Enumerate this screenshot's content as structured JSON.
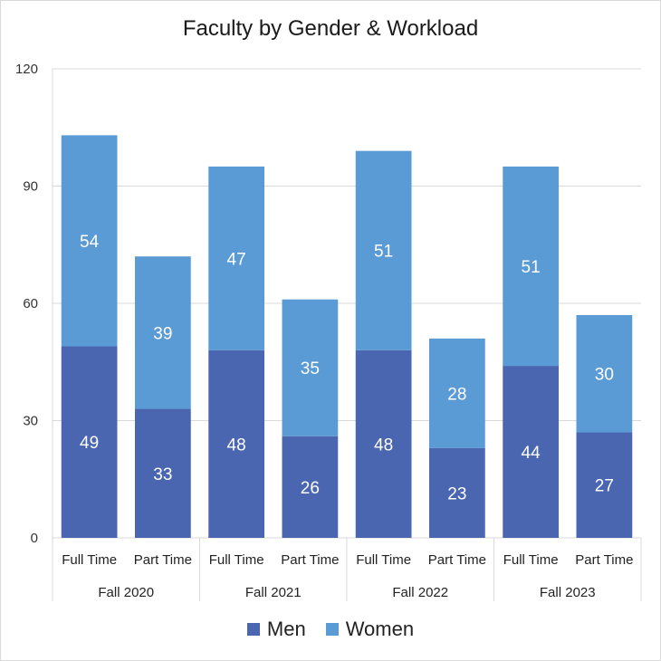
{
  "chart_data": {
    "type": "bar",
    "stacked": true,
    "title": "Faculty by Gender & Workload",
    "xlabel": "",
    "ylabel": "",
    "ylim": [
      0,
      120
    ],
    "yticks": [
      "0",
      "30",
      "60",
      "90",
      "120"
    ],
    "grid": true,
    "legend_position": "bottom",
    "groups": [
      "Fall 2020",
      "Fall 2021",
      "Fall 2022",
      "Fall 2023"
    ],
    "categories": [
      "Full Time",
      "Part Time",
      "Full Time",
      "Part Time",
      "Full Time",
      "Part Time",
      "Full Time",
      "Part Time"
    ],
    "series": [
      {
        "name": "Men",
        "color": "#4a66b0",
        "values": [
          49,
          33,
          48,
          26,
          48,
          23,
          44,
          27
        ]
      },
      {
        "name": "Women",
        "color": "#5b9bd5",
        "values": [
          54,
          39,
          47,
          35,
          51,
          28,
          51,
          30
        ]
      }
    ]
  }
}
